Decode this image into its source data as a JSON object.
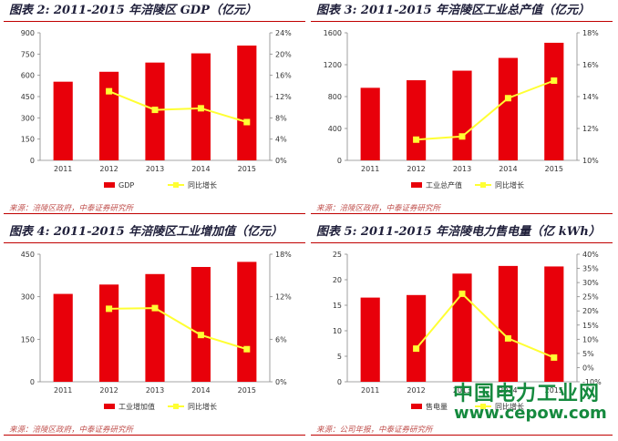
{
  "colors": {
    "bar": "#e8000a",
    "line": "#ffff33",
    "title_rule": "#c00000"
  },
  "watermark": {
    "line1": "中国电力工业网",
    "line2": "www.cepow.com"
  },
  "chart_data": [
    {
      "type": "bar",
      "title": "图表 2: 2011-2015 年涪陵区 GDP（亿元）",
      "source": "来源：涪陵区政府，中泰证券研究所",
      "categories": [
        "2011",
        "2012",
        "2013",
        "2014",
        "2015"
      ],
      "bar_series": {
        "name": "GDP",
        "values": [
          555,
          625,
          690,
          755,
          810
        ]
      },
      "line_series": {
        "name": "同比增长",
        "values": [
          null,
          13.0,
          9.5,
          9.8,
          7.2
        ]
      },
      "y_left": {
        "ticks": [
          "0",
          "150",
          "300",
          "450",
          "600",
          "750",
          "900"
        ],
        "range": [
          0,
          900
        ]
      },
      "y_right": {
        "ticks": [
          "0%",
          "4%",
          "8%",
          "12%",
          "16%",
          "20%",
          "24%"
        ],
        "range": [
          0,
          24
        ]
      },
      "legend": "bottom"
    },
    {
      "type": "bar",
      "title": "图表 3: 2011-2015 年涪陵区工业总产值（亿元）",
      "source": "来源：涪陵区政府，中泰证券研究所",
      "categories": [
        "2011",
        "2012",
        "2013",
        "2014",
        "2015"
      ],
      "bar_series": {
        "name": "工业总产值",
        "values": [
          910,
          1005,
          1125,
          1285,
          1475
        ]
      },
      "line_series": {
        "name": "同比增长",
        "values": [
          null,
          11.3,
          11.5,
          13.9,
          15.0
        ]
      },
      "y_left": {
        "ticks": [
          "0",
          "400",
          "800",
          "1200",
          "1600"
        ],
        "range": [
          0,
          1600
        ]
      },
      "y_right": {
        "ticks": [
          "10%",
          "12%",
          "14%",
          "16%",
          "18%"
        ],
        "range": [
          10,
          18
        ]
      },
      "legend": "bottom"
    },
    {
      "type": "bar",
      "title": "图表 4: 2011-2015 年涪陵区工业增加值（亿元）",
      "source": "来源：涪陵区政府，中泰证券研究所",
      "categories": [
        "2011",
        "2012",
        "2013",
        "2014",
        "2015"
      ],
      "bar_series": {
        "name": "工业增加值",
        "values": [
          310,
          343,
          380,
          405,
          423
        ]
      },
      "line_series": {
        "name": "同比增长",
        "values": [
          null,
          10.3,
          10.4,
          6.6,
          4.6
        ]
      },
      "y_left": {
        "ticks": [
          "0",
          "150",
          "300",
          "450"
        ],
        "range": [
          0,
          450
        ]
      },
      "y_right": {
        "ticks": [
          "0%",
          "6%",
          "12%",
          "18%"
        ],
        "range": [
          0,
          18
        ]
      },
      "legend": "bottom"
    },
    {
      "type": "bar",
      "title": "图表 5: 2011-2015 年涪陵电力售电量（亿 kWh）",
      "source": "来源：公司年报，中泰证券研究所",
      "categories": [
        "2011",
        "2012",
        "2013",
        "2014",
        "2015"
      ],
      "bar_series": {
        "name": "售电量",
        "values": [
          16.5,
          17.0,
          21.2,
          22.7,
          22.6
        ]
      },
      "line_series": {
        "name": "同比增长",
        "values": [
          null,
          3.0,
          24.5,
          7.0,
          -0.5
        ]
      },
      "y_left": {
        "ticks": [
          "0",
          "5",
          "10",
          "15",
          "20",
          "25"
        ],
        "range": [
          0,
          25
        ]
      },
      "y_right": {
        "ticks": [
          "-10%",
          "0%",
          "5%",
          "10%",
          "15%",
          "20%",
          "25%",
          "30%",
          "35%",
          "40%"
        ],
        "range": [
          -10,
          40
        ]
      },
      "legend": "bottom"
    }
  ]
}
